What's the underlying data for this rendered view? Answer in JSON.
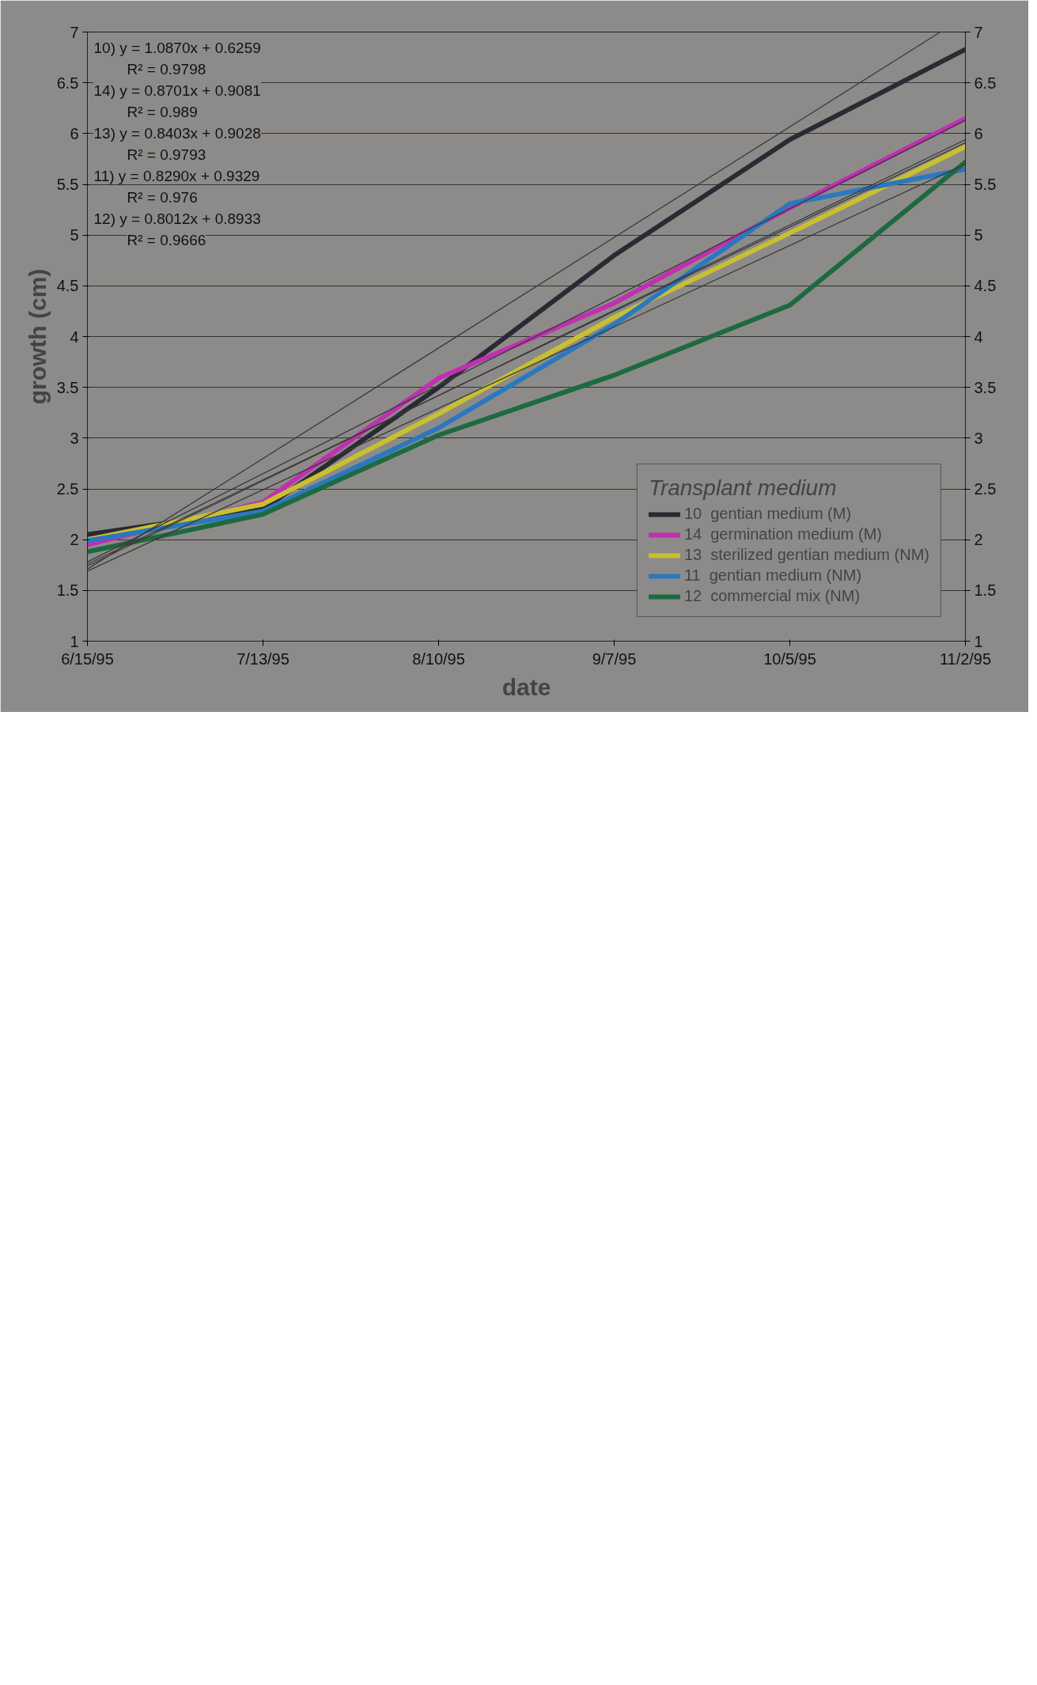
{
  "chart_data": {
    "type": "line",
    "xlabel": "date",
    "ylabel": "growth (cm)",
    "legend_title": "Transplant medium",
    "x": [
      "1995-06-15",
      "1995-07-13",
      "1995-08-10",
      "1995-09-07",
      "1995-10-05",
      "1995-11-02"
    ],
    "xlim": [
      "1995-06-15",
      "1995-11-02"
    ],
    "xticks": [
      {
        "value": "1995-06-15",
        "label": "6/15/95"
      },
      {
        "value": "1995-07-13",
        "label": "7/13/95"
      },
      {
        "value": "1995-08-10",
        "label": "8/10/95"
      },
      {
        "value": "1995-09-07",
        "label": "9/7/95"
      },
      {
        "value": "1995-10-05",
        "label": "10/5/95"
      },
      {
        "value": "1995-11-02",
        "label": "11/2/95"
      }
    ],
    "ylim": [
      1,
      7
    ],
    "yticks": [
      1,
      1.5,
      2,
      2.5,
      3,
      3.5,
      4,
      4.5,
      5,
      5.5,
      6,
      6.5,
      7
    ],
    "y2lim": [
      1,
      7
    ],
    "y2ticks": [
      1,
      1.5,
      2,
      2.5,
      3,
      3.5,
      4,
      4.5,
      5,
      5.5,
      6,
      6.5,
      7
    ],
    "grid": "y",
    "legend": "bottom right",
    "line_style": "solid",
    "series": [
      {
        "name": "10  gentian medium (M)",
        "color": "#2a2a35",
        "values": [
          2.05,
          2.3,
          3.5,
          4.8,
          5.94,
          6.83
        ]
      },
      {
        "name": "14  germination medium (M)",
        "color": "#c030b0",
        "values": [
          1.95,
          2.37,
          3.59,
          4.33,
          5.27,
          6.15
        ]
      },
      {
        "name": "13  sterilized gentian medium (NM)",
        "color": "#c8c030",
        "values": [
          2.0,
          2.35,
          3.24,
          4.19,
          5.02,
          5.87
        ]
      },
      {
        "name": "11  gentian medium (NM)",
        "color": "#2a78c0",
        "values": [
          1.99,
          2.28,
          3.1,
          4.12,
          5.31,
          5.65
        ]
      },
      {
        "name": "12  commercial mix (NM)",
        "color": "#1e6a40",
        "values": [
          1.88,
          2.25,
          3.03,
          3.62,
          4.31,
          5.72
        ]
      },
      {
        "type": "line",
        "color": "#3a3a3a",
        "x": [
          "1995-06-15",
          "1995-10-29"
        ],
        "values": [
          1.71,
          7.0
        ]
      },
      {
        "type": "line",
        "color": "#3a3a3a",
        "x": [
          "1995-06-15",
          "1995-11-02"
        ],
        "values": [
          1.78,
          6.13
        ]
      },
      {
        "type": "line",
        "color": "#3a3a3a",
        "x": [
          "1995-06-15",
          "1995-11-02"
        ],
        "values": [
          1.74,
          5.94
        ]
      },
      {
        "type": "line",
        "color": "#3a3a3a",
        "x": [
          "1995-06-15",
          "1995-11-02"
        ],
        "values": [
          1.76,
          5.91
        ]
      },
      {
        "type": "line",
        "color": "#3a3a3a",
        "x": [
          "1995-06-15",
          "1995-11-02"
        ],
        "values": [
          1.69,
          5.7
        ]
      }
    ],
    "annotations": [
      "10) y = 1.0870x + 0.6259",
      "R² = 0.9798",
      "14) y = 0.8701x + 0.9081",
      "R² = 0.989",
      "13) y = 0.8403x + 0.9028",
      "R² = 0.9793",
      "11) y = 0.8290x + 0.9329",
      "R² = 0.976",
      "12) y = 0.8012x + 0.8933",
      "R² = 0.9666"
    ]
  }
}
